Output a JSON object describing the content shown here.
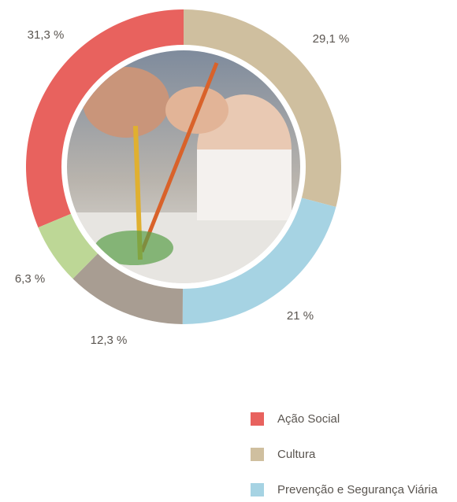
{
  "chart_data": {
    "type": "donut",
    "categories": [
      "Ação Social",
      "Cultura",
      "Prevenção e Segurança Viária",
      null,
      null
    ],
    "values": [
      31.3,
      29.1,
      21,
      12.3,
      6.3
    ],
    "value_labels": [
      "31,3 %",
      "29,1 %",
      "21 %",
      "12,3 %",
      "6,3 %"
    ],
    "colors": [
      "#e8625e",
      "#cfbf9f",
      "#a6d3e3",
      "#a89d92",
      "#bdd796"
    ]
  }
}
